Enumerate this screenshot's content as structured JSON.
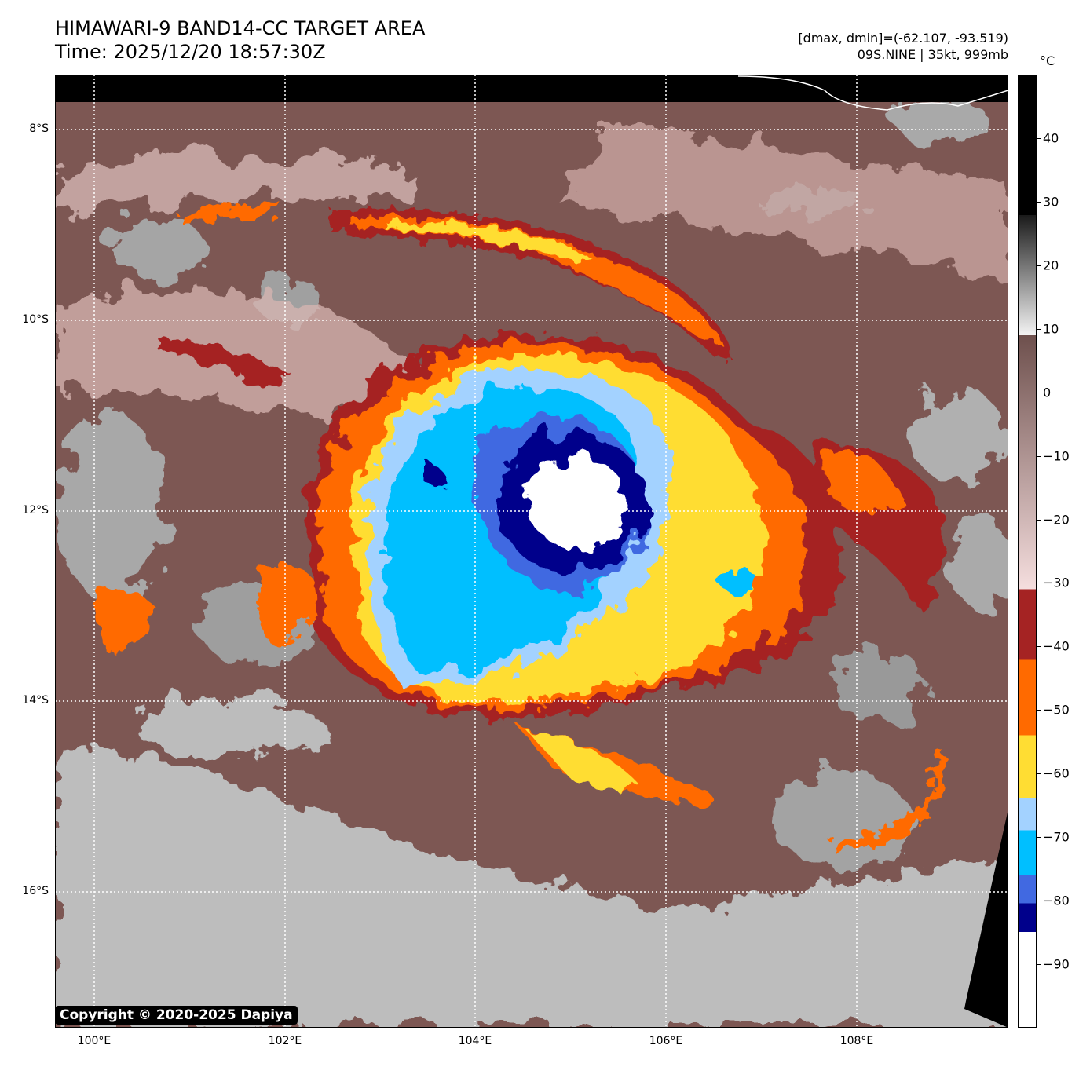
{
  "header": {
    "title": "HIMAWARI-9 BAND14-CC TARGET AREA",
    "time": "Time: 2025/12/20 18:57:30Z",
    "dminmax": "[dmax, dmin]=(-62.107, -93.519)",
    "storm": "09S.NINE | 35kt, 999mb"
  },
  "map": {
    "lat_labels": [
      "8°S",
      "10°S",
      "12°S",
      "14°S",
      "16°S"
    ],
    "lon_labels": [
      "100°E",
      "102°E",
      "104°E",
      "106°E",
      "108°E"
    ],
    "copyright": "Copyright © 2020-2025 Dapiya"
  },
  "colorbar": {
    "unit": "°C",
    "range": [
      -100,
      50
    ],
    "ticks": [
      "40",
      "30",
      "20",
      "10",
      "0",
      "−10",
      "−20",
      "−30",
      "−40",
      "−50",
      "−60",
      "−70",
      "−80",
      "−90"
    ],
    "tick_values": [
      40,
      30,
      20,
      10,
      0,
      -10,
      -20,
      -30,
      -40,
      -50,
      -60,
      -70,
      -80,
      -90
    ],
    "segments": [
      {
        "from": 50,
        "to": 28,
        "color": "#000000"
      },
      {
        "from": 28,
        "to": 9,
        "color": "gradient:#1a1a1a-#f4f4f4"
      },
      {
        "from": 9,
        "to": -31,
        "color": "gradient:#6e504d-#f5dede"
      },
      {
        "from": -31,
        "to": -42,
        "color": "#a52323"
      },
      {
        "from": -42,
        "to": -54,
        "color": "#ff6a00"
      },
      {
        "from": -54,
        "to": -64,
        "color": "#ffdd33"
      },
      {
        "from": -64,
        "to": -69,
        "color": "#a3d2ff"
      },
      {
        "from": -69,
        "to": -76,
        "color": "#00bfff"
      },
      {
        "from": -76,
        "to": -80.5,
        "color": "#4169e1"
      },
      {
        "from": -80.5,
        "to": -85,
        "color": "#00008b"
      },
      {
        "from": -85,
        "to": -100,
        "color": "#ffffff"
      }
    ]
  }
}
